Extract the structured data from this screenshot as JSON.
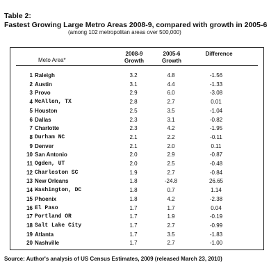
{
  "table": {
    "label": "Table 2:",
    "title": "Fastest Growing Large Metro Areas 2008-9, compared with growth in 2005-6",
    "subtitle": "(among 102 metropolitan areas over 500,000)",
    "columns": {
      "area": "Meto Area*",
      "growth_2008_9_line1": "2008-9",
      "growth_2008_9_line2": "Growth",
      "growth_2005_6_line1": "2005-6",
      "growth_2005_6_line2": "Growth",
      "difference": "Difference"
    },
    "rows": [
      {
        "rank": "1",
        "area": "Raleigh",
        "mono": false,
        "g1": "3.2",
        "g2": "4.8",
        "diff": "-1.56"
      },
      {
        "rank": "2",
        "area": "Austin",
        "mono": false,
        "g1": "3.1",
        "g2": "4.4",
        "diff": "-1.33"
      },
      {
        "rank": "3",
        "area": "Provo",
        "mono": false,
        "g1": "2.9",
        "g2": "6.0",
        "diff": "-3.08"
      },
      {
        "rank": "4",
        "area": "McAllen, TX",
        "mono": true,
        "g1": "2.8",
        "g2": "2.7",
        "diff": "0.01"
      },
      {
        "rank": "5",
        "area": "Houston",
        "mono": false,
        "g1": "2.5",
        "g2": "3.5",
        "diff": "-1.04"
      },
      {
        "rank": "6",
        "area": "Dallas",
        "mono": false,
        "g1": "2.3",
        "g2": "3.1",
        "diff": "-0.82"
      },
      {
        "rank": "7",
        "area": "Charlotte",
        "mono": false,
        "g1": "2.3",
        "g2": "4.2",
        "diff": "-1.95"
      },
      {
        "rank": "8",
        "area": "Durham NC",
        "mono": true,
        "g1": "2.1",
        "g2": "2.2",
        "diff": "-0.11"
      },
      {
        "rank": "9",
        "area": "Denver",
        "mono": false,
        "g1": "2.1",
        "g2": "2.0",
        "diff": "0.11"
      },
      {
        "rank": "10",
        "area": "San Antonio",
        "mono": false,
        "g1": "2.0",
        "g2": "2.9",
        "diff": "-0.87"
      },
      {
        "rank": "11",
        "area": "Ogden, UT",
        "mono": true,
        "g1": "2.0",
        "g2": "2.5",
        "diff": "-0.48"
      },
      {
        "rank": "12",
        "area": "Charleston SC",
        "mono": true,
        "g1": "1.9",
        "g2": "2.7",
        "diff": "-0.84"
      },
      {
        "rank": "13",
        "area": "New Orleans",
        "mono": false,
        "g1": "1.8",
        "g2": "-24.8",
        "diff": "26.65"
      },
      {
        "rank": "14",
        "area": "Washington, DC",
        "mono": true,
        "g1": "1.8",
        "g2": "0.7",
        "diff": "1.14"
      },
      {
        "rank": "15",
        "area": "Phoenix",
        "mono": false,
        "g1": "1.8",
        "g2": "4.2",
        "diff": "-2.38"
      },
      {
        "rank": "16",
        "area": "El Paso",
        "mono": true,
        "g1": "1.7",
        "g2": "1.7",
        "diff": "0.04"
      },
      {
        "rank": "17",
        "area": "Portland OR",
        "mono": true,
        "g1": "1.7",
        "g2": "1.9",
        "diff": "-0.19"
      },
      {
        "rank": "18",
        "area": "Salt Lake City",
        "mono": true,
        "g1": "1.7",
        "g2": "2.7",
        "diff": "-0.99"
      },
      {
        "rank": "19",
        "area": "Atlanta",
        "mono": false,
        "g1": "1.7",
        "g2": "3.5",
        "diff": "-1.83"
      },
      {
        "rank": "20",
        "area": "Nashville",
        "mono": false,
        "g1": "1.7",
        "g2": "2.7",
        "diff": "-1.00"
      }
    ],
    "source": "Source:  Author's analysis of US Census Estimates, 2009 (released March 23, 2010)"
  }
}
